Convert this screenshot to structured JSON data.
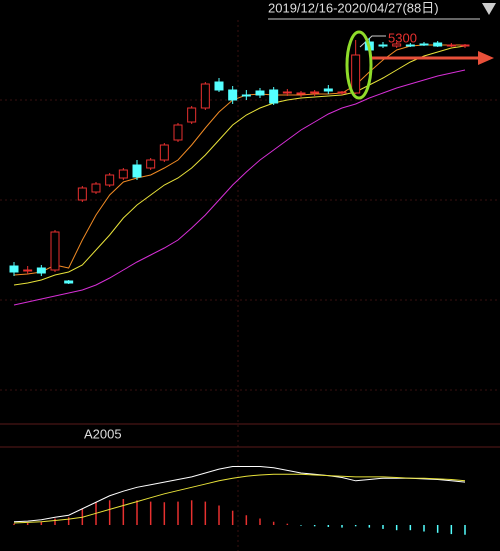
{
  "chart_data": [
    {
      "type": "candlestick",
      "title": "2019/12/16-2020/04/27(88日)",
      "annotation": 5300,
      "up_color": "#e8312f",
      "down_color": "#54ffff",
      "ylim": [
        3400,
        5500
      ],
      "open": [
        4170,
        4150,
        4160,
        4150,
        4095,
        4500,
        4540,
        4575,
        4610,
        4675,
        4660,
        4700,
        4800,
        4890,
        4960,
        5090,
        5050,
        5025,
        5045,
        5050,
        5035,
        5030,
        5035,
        5055,
        5035,
        5035,
        5290,
        5275,
        5270,
        5275,
        5280,
        5285,
        5275,
        5270
      ],
      "close": [
        4140,
        4150,
        4135,
        4340,
        4085,
        4560,
        4580,
        4625,
        4650,
        4615,
        4700,
        4775,
        4875,
        4960,
        5080,
        5050,
        5000,
        5020,
        5025,
        4985,
        5040,
        5035,
        5040,
        5045,
        5040,
        5225,
        5250,
        5270,
        5280,
        5270,
        5275,
        5270,
        5275,
        5275
      ],
      "high": [
        4190,
        4170,
        4175,
        4350,
        4100,
        4570,
        4590,
        4635,
        4660,
        4700,
        4710,
        4785,
        4885,
        4970,
        5090,
        5110,
        5070,
        5050,
        5060,
        5065,
        5055,
        5045,
        5050,
        5075,
        5045,
        5300,
        5310,
        5290,
        5290,
        5285,
        5290,
        5295,
        5285,
        5280
      ],
      "low": [
        4120,
        4130,
        4120,
        4140,
        4080,
        4490,
        4530,
        4565,
        4600,
        4600,
        4650,
        4690,
        4790,
        4880,
        4950,
        5040,
        4980,
        5000,
        5010,
        4975,
        5020,
        5015,
        5020,
        5030,
        5025,
        5030,
        5240,
        5260,
        5260,
        5265,
        5270,
        5265,
        5265,
        5260
      ],
      "series": [
        {
          "color": "#f08a24",
          "values": [
            4125,
            4130,
            4140,
            4175,
            4160,
            4300,
            4425,
            4525,
            4590,
            4610,
            4625,
            4660,
            4700,
            4775,
            4860,
            4940,
            5000,
            5025,
            5030,
            5025,
            5025,
            5025,
            5030,
            5030,
            5035,
            5075,
            5140,
            5200,
            5250,
            5270,
            5275,
            5275,
            5275,
            5275
          ]
        },
        {
          "color": "#e8e23a",
          "values": [
            4075,
            4085,
            4100,
            4125,
            4140,
            4175,
            4250,
            4325,
            4410,
            4475,
            4525,
            4575,
            4610,
            4660,
            4725,
            4800,
            4875,
            4925,
            4960,
            4985,
            5000,
            5010,
            5015,
            5020,
            5025,
            5040,
            5075,
            5110,
            5150,
            5190,
            5220,
            5240,
            5260,
            5270
          ]
        },
        {
          "color": "#d62fd6",
          "values": [
            3975,
            3990,
            4005,
            4020,
            4035,
            4050,
            4075,
            4110,
            4150,
            4190,
            4225,
            4260,
            4300,
            4360,
            4425,
            4500,
            4575,
            4640,
            4700,
            4750,
            4800,
            4850,
            4890,
            4930,
            4960,
            4980,
            5010,
            5035,
            5060,
            5080,
            5100,
            5120,
            5135,
            5150
          ]
        }
      ]
    },
    {
      "type": "macd",
      "title": "A2005",
      "ylim": [
        -40,
        120
      ],
      "up_color": "#e8312f",
      "down_color": "#54ffff",
      "values": [
        2,
        3,
        5,
        10,
        12,
        25,
        35,
        38,
        40,
        38,
        36,
        35,
        36,
        38,
        36,
        30,
        22,
        15,
        10,
        5,
        2,
        -1,
        -2,
        -3,
        -4,
        -2,
        -4,
        -6,
        -8,
        -8,
        -10,
        -12,
        -14,
        -15
      ],
      "series": [
        {
          "color": "#ffffff",
          "values": [
            5,
            6,
            8,
            12,
            15,
            25,
            35,
            45,
            52,
            58,
            62,
            66,
            70,
            74,
            80,
            86,
            90,
            90,
            90,
            88,
            84,
            80,
            78,
            76,
            73,
            68,
            70,
            72,
            72,
            72,
            71,
            70,
            68,
            66
          ]
        },
        {
          "color": "#e8e23a",
          "values": [
            3,
            4,
            5,
            7,
            9,
            12,
            18,
            24,
            30,
            36,
            42,
            48,
            53,
            58,
            63,
            68,
            72,
            75,
            77,
            78,
            78,
            78,
            77,
            76,
            75,
            74,
            74,
            74,
            73,
            72,
            72,
            71,
            70,
            68
          ]
        }
      ]
    }
  ]
}
